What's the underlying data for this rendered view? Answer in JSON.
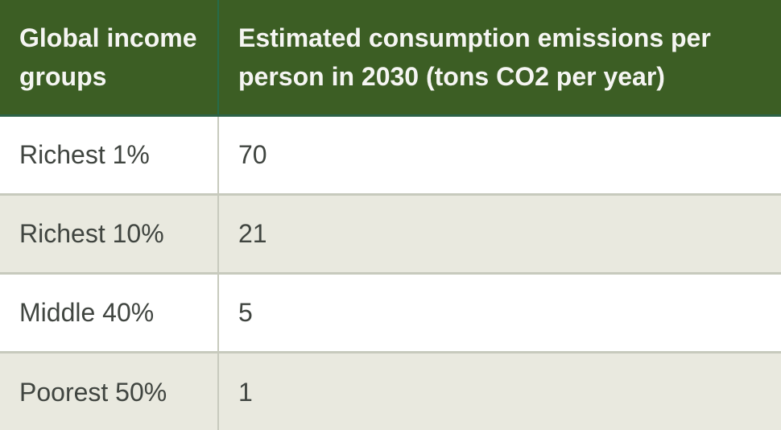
{
  "table": {
    "columns": [
      {
        "label": "Global income groups"
      },
      {
        "label": "Estimated consumption emissions per person in 2030 (tons CO2 per year)"
      }
    ],
    "rows": [
      {
        "group": "Richest 1%",
        "value": "70"
      },
      {
        "group": "Richest 10%",
        "value": "21"
      },
      {
        "group": "Middle 40%",
        "value": "5"
      },
      {
        "group": "Poorest 50%",
        "value": "1"
      }
    ]
  },
  "chart_data": {
    "type": "table",
    "columns": [
      "Global income groups",
      "Estimated consumption emissions per person in 2030 (tons CO2 per year)"
    ],
    "categories": [
      "Richest 1%",
      "Richest 10%",
      "Middle 40%",
      "Poorest 50%"
    ],
    "values": [
      70,
      21,
      5,
      1
    ],
    "value_unit": "tons CO2 per person per year (estimated, 2030)"
  },
  "colors": {
    "header_bg": "#3c5e24",
    "header_text": "#f5f5f2",
    "header_divider": "#266b4a",
    "header_bottom_border": "#2c6247",
    "row_bg": "#ffffff",
    "row_alt_bg": "#e9e9df",
    "body_divider": "#c7cabd",
    "body_text": "#404540"
  }
}
